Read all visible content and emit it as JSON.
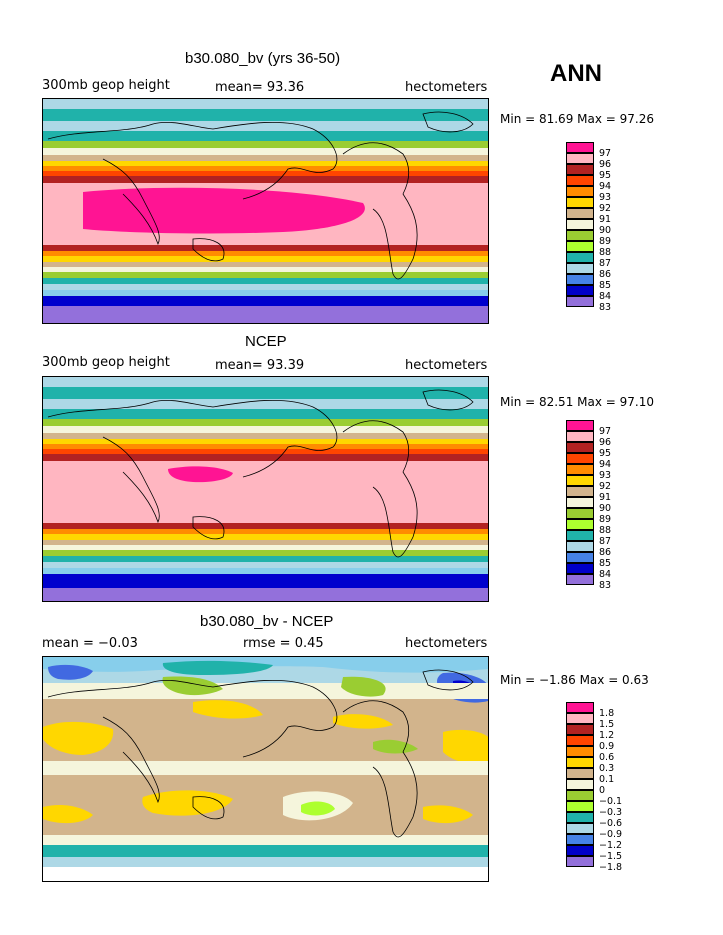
{
  "season": "ANN",
  "panels": [
    {
      "title": "b30.080_bv (yrs 36-50)",
      "left": "300mb geop height",
      "center": "mean=  93.36",
      "right": "hectometers",
      "minmax": "Min =  81.69 Max =  97.26",
      "legend_labels": [
        "97",
        "96",
        "95",
        "94",
        "93",
        "92",
        "91",
        "90",
        "89",
        "88",
        "87",
        "86",
        "85",
        "84",
        "83"
      ]
    },
    {
      "title": "NCEP",
      "left": "300mb geop height",
      "center": "mean=  93.39",
      "right": "hectometers",
      "minmax": "Min =  82.51 Max =  97.10",
      "legend_labels": [
        "97",
        "96",
        "95",
        "94",
        "93",
        "92",
        "91",
        "90",
        "89",
        "88",
        "87",
        "86",
        "85",
        "84",
        "83"
      ]
    },
    {
      "title": "b30.080_bv - NCEP",
      "left": "mean =  −0.03",
      "center": "rmse =  0.45",
      "right": "hectometers",
      "minmax": "Min =  −1.86 Max =   0.63",
      "legend_labels": [
        "1.8",
        "1.5",
        "1.2",
        "0.9",
        "0.6",
        "0.3",
        "0.1",
        "0",
        "−0.1",
        "−0.3",
        "−0.6",
        "−0.9",
        "−1.2",
        "−1.5",
        "−1.8"
      ]
    }
  ],
  "palette": [
    "#ff1493",
    "#ffb6c1",
    "#b22222",
    "#ff4500",
    "#ff8c00",
    "#ffd700",
    "#d2b48c",
    "#f5f5dc",
    "#9acd32",
    "#adff2f",
    "#20b2aa",
    "#add8e6",
    "#87ceeb",
    "#4169e1",
    "#0000cd",
    "#9370db"
  ],
  "legend_colors": [
    "#ff1493",
    "#ffb6c1",
    "#b22222",
    "#ff4500",
    "#ff8c00",
    "#ffd700",
    "#d2b48c",
    "#f5f5dc",
    "#9acd32",
    "#adff2f",
    "#20b2aa",
    "#add8e6",
    "#4682e6",
    "#0000c8",
    "#9370db"
  ]
}
